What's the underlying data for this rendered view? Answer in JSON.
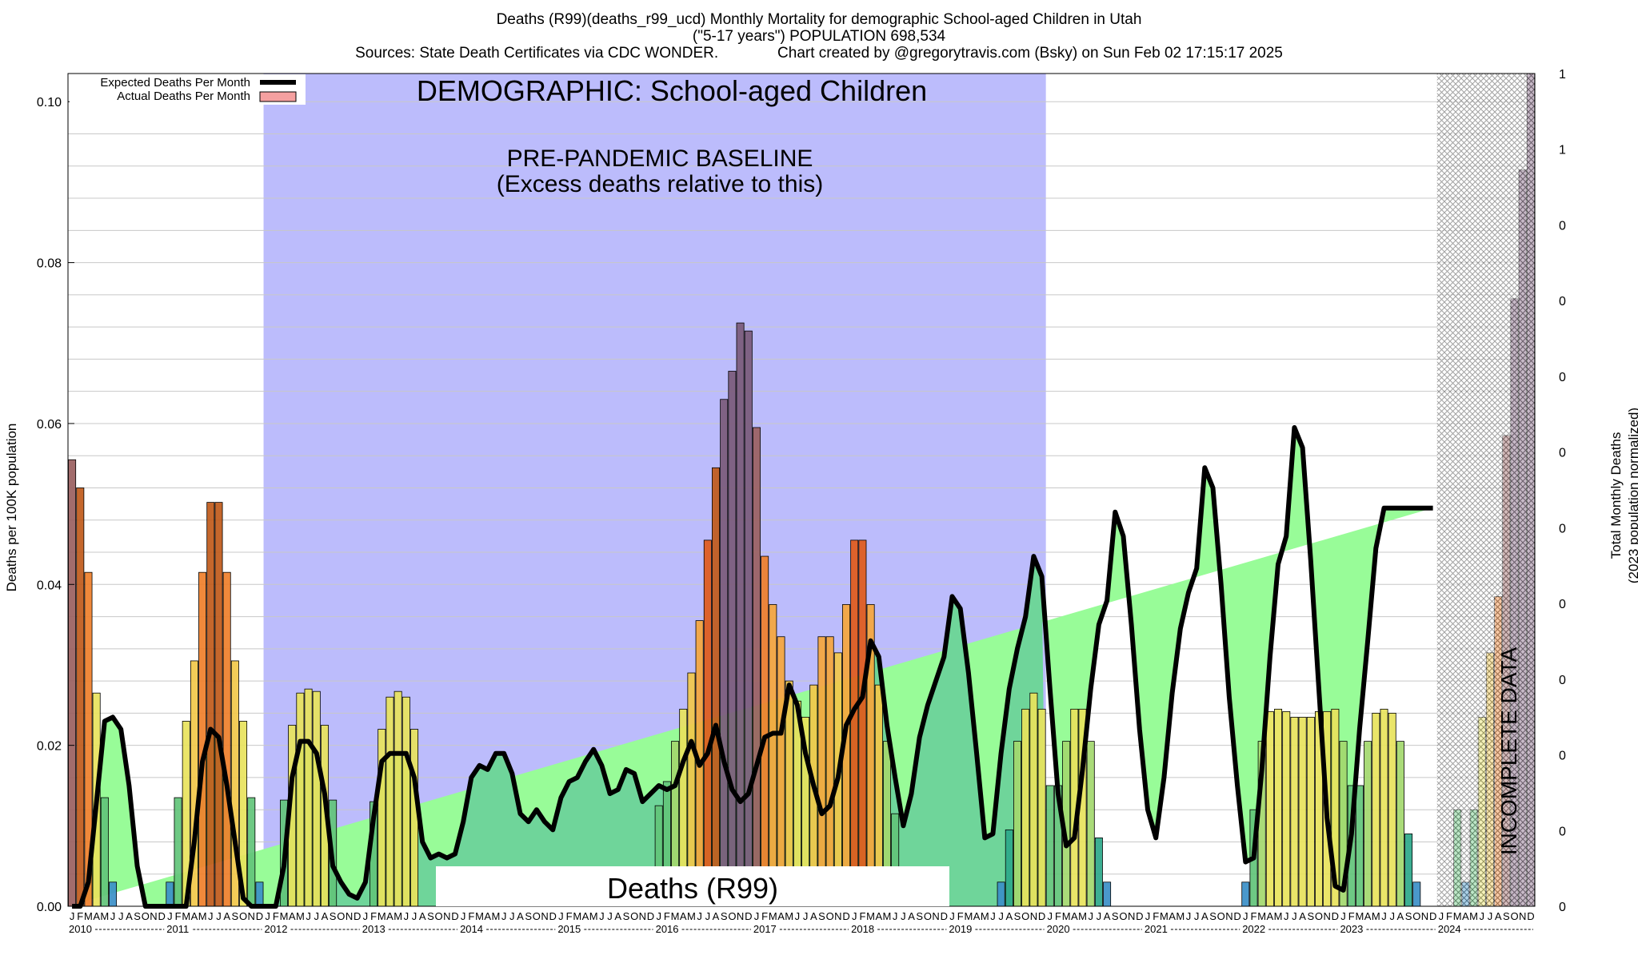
{
  "header": {
    "line1": "Deaths (R99)(deaths_r99_ucd) Monthly Mortality for demographic School-aged Children in Utah",
    "line2": "(\"5-17 years\") POPULATION 698,534",
    "line3": "Sources: State Death Certificates via CDC WONDER.              Chart created by @gregorytravis.com (Bsky) on Sun Feb 02 17:15:17 2025"
  },
  "chart_data": {
    "type": "bar",
    "ylabel": "Deaths per 100K population",
    "y2label_line1": "Total Monthly Deaths",
    "y2label_line2": "(2023 population normalized)",
    "ylim": [
      0,
      0.1035
    ],
    "y_ticks": [
      0.0,
      0.02,
      0.04,
      0.06,
      0.08,
      0.1
    ],
    "y_tick_labels": [
      "0.00",
      "0.02",
      "0.04",
      "0.06",
      "0.08",
      "0.10"
    ],
    "y2_tick_labels": [
      "0",
      "0",
      "0",
      "0",
      "0",
      "0",
      "0",
      "0",
      "0",
      "0",
      "1",
      "1"
    ],
    "x_start_year": 2010,
    "x_months": 180,
    "month_letters": [
      "J",
      "F",
      "M",
      "A",
      "M",
      "J",
      "J",
      "A",
      "S",
      "O",
      "N",
      "D"
    ],
    "year_labels": [
      "2010",
      "2011",
      "2012",
      "2013",
      "2014",
      "2015",
      "2016",
      "2017",
      "2018",
      "2019",
      "2020",
      "2021",
      "2022",
      "2023",
      "2024"
    ],
    "grid": "horizontal",
    "legend": {
      "position": "top-left",
      "expected_label": "Expected Deaths Per Month",
      "actual_label": "Actual Deaths Per Month"
    },
    "annotations": {
      "demographic": "DEMOGRAPHIC: School-aged Children",
      "baseline_line1": "PRE-PANDEMIC BASELINE",
      "baseline_line2": "(Excess deaths relative to this)",
      "cause": "Deaths (R99)",
      "incomplete": "INCOMPLETE DATA"
    },
    "baseline_span_months": [
      24,
      120
    ],
    "incomplete_span_months": [
      168,
      180
    ],
    "colors": {
      "baseline": "#bcbcfc",
      "expected_fill": "#98fc98",
      "overlap_fill": "#6fd59a",
      "excess_fill": "#f5a0a0",
      "expected_line": "#000000",
      "bar_palette": [
        "#3b8fc8",
        "#2da88a",
        "#62c47a",
        "#a3d86e",
        "#e8e35c",
        "#f2c84a",
        "#f5a63c",
        "#ef7f2a",
        "#e05a1a",
        "#c05a1a",
        "#9a6060",
        "#7a5a7a"
      ]
    },
    "series": [
      {
        "name": "Expected Deaths Per Month",
        "values": [
          0,
          0,
          0.003,
          0.013,
          0.023,
          0.0235,
          0.022,
          0.015,
          0.005,
          0,
          0,
          0,
          0,
          0,
          0,
          0.008,
          0.018,
          0.022,
          0.021,
          0.015,
          0.008,
          0.001,
          0,
          0,
          0,
          0,
          0.005,
          0.016,
          0.0205,
          0.0205,
          0.019,
          0.014,
          0.005,
          0.003,
          0.0015,
          0.001,
          0.003,
          0.011,
          0.018,
          0.019,
          0.019,
          0.019,
          0.016,
          0.008,
          0.006,
          0.0065,
          0.006,
          0.0065,
          0.0105,
          0.016,
          0.0175,
          0.017,
          0.019,
          0.019,
          0.0165,
          0.0115,
          0.0105,
          0.012,
          0.0105,
          0.0095,
          0.0135,
          0.0155,
          0.016,
          0.018,
          0.0195,
          0.0175,
          0.014,
          0.0145,
          0.017,
          0.0165,
          0.013,
          0.014,
          0.015,
          0.0145,
          0.015,
          0.018,
          0.0205,
          0.0175,
          0.019,
          0.0225,
          0.018,
          0.0145,
          0.013,
          0.014,
          0.0175,
          0.021,
          0.0215,
          0.0215,
          0.0275,
          0.025,
          0.019,
          0.015,
          0.0115,
          0.0125,
          0.016,
          0.0225,
          0.0245,
          0.026,
          0.033,
          0.031,
          0.0225,
          0.016,
          0.01,
          0.014,
          0.021,
          0.025,
          0.028,
          0.031,
          0.0385,
          0.037,
          0.029,
          0.019,
          0.0085,
          0.009,
          0.019,
          0.027,
          0.032,
          0.036,
          0.0435,
          0.041,
          0.027,
          0.014,
          0.0075,
          0.0085,
          0.017,
          0.027,
          0.035,
          0.038,
          0.049,
          0.046,
          0.035,
          0.022,
          0.012,
          0.0085,
          0.016,
          0.0265,
          0.0345,
          0.039,
          0.042,
          0.0545,
          0.052,
          0.04,
          0.026,
          0.015,
          0.0055,
          0.006,
          0.017,
          0.031,
          0.0425,
          0.046,
          0.0595,
          0.057,
          0.043,
          0.027,
          0.011,
          0.0025,
          0.002,
          0.009,
          0.022,
          0.033,
          0.0445,
          0.0495,
          0.0495,
          0.0495,
          0.0495,
          0.0495,
          0.0495,
          0.0495
        ]
      },
      {
        "name": "Actual Deaths Per Month",
        "values": [
          0.0555,
          0.052,
          0.0415,
          0.0265,
          0.0135,
          0.003,
          0,
          0,
          0,
          0,
          0,
          0,
          0.003,
          0.0135,
          0.023,
          0.0305,
          0.0415,
          0.0502,
          0.0502,
          0.0415,
          0.0305,
          0.023,
          0.0135,
          0.003,
          0,
          0,
          0.0132,
          0.0225,
          0.0265,
          0.027,
          0.0267,
          0.0225,
          0.0132,
          0,
          0,
          0,
          0,
          0.013,
          0.022,
          0.026,
          0.0267,
          0.026,
          0.022,
          0,
          0,
          0,
          0,
          0,
          0,
          0,
          0,
          0,
          0,
          0,
          0,
          0,
          0,
          0,
          0,
          0,
          0,
          0,
          0,
          0,
          0,
          0,
          0,
          0,
          0,
          0,
          0,
          0,
          0.0125,
          0.0155,
          0.0205,
          0.0245,
          0.029,
          0.0355,
          0.0455,
          0.0545,
          0.063,
          0.0665,
          0.0725,
          0.0715,
          0.0595,
          0.0435,
          0.0375,
          0.0335,
          0.028,
          0.0255,
          0.0235,
          0.0275,
          0.0335,
          0.0335,
          0.0315,
          0.0375,
          0.0455,
          0.0455,
          0.0375,
          0.0275,
          0.0205,
          0.0115,
          0,
          0,
          0,
          0,
          0,
          0,
          0,
          0,
          0,
          0,
          0,
          0,
          0.003,
          0.0095,
          0.0205,
          0.0245,
          0.0265,
          0.0245,
          0.015,
          0.015,
          0.0205,
          0.0245,
          0.0245,
          0.0205,
          0.0085,
          0.003,
          0,
          0,
          0,
          0,
          0,
          0,
          0,
          0,
          0,
          0,
          0,
          0,
          0,
          0,
          0,
          0,
          0.003,
          0.012,
          0.0205,
          0.0242,
          0.0245,
          0.0242,
          0.0235,
          0.0235,
          0.0235,
          0.0242,
          0.0242,
          0.0245,
          0.0205,
          0.015,
          0.015,
          0.0205,
          0.024,
          0.0245,
          0.024,
          0.0205,
          0.009,
          0.003,
          0,
          0,
          0,
          0,
          0.012,
          0.003,
          0.012,
          0.0235,
          0.0315,
          0.0385,
          0.0585,
          0.0755,
          0.0915,
          0.104
        ]
      }
    ]
  }
}
